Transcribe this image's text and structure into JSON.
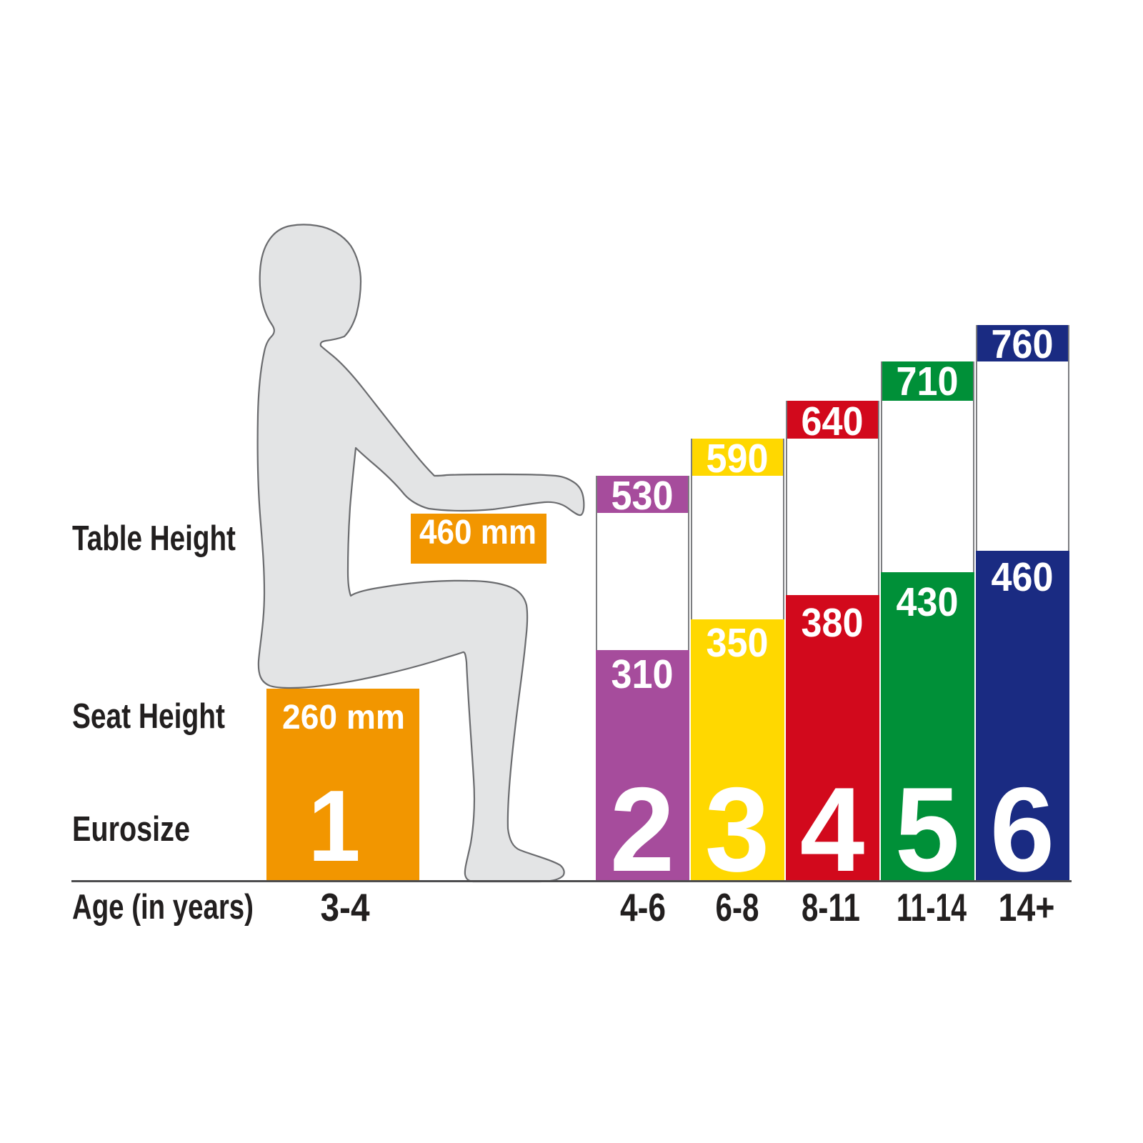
{
  "colors": {
    "orange": "#F29600",
    "purple": "#A64C9C",
    "yellow": "#FFD800",
    "red": "#D2091C",
    "green": "#009038",
    "blue": "#1A2B82",
    "silhouette_fill": "#E3E4E5",
    "silhouette_outline": "#6A6B6E",
    "column_border": "#7C7D80",
    "column_gap_fill": "#FFFFFF",
    "baseline": "#4D4D4F",
    "text_dark": "#221F1F",
    "text_light": "#FFFFFF"
  },
  "labels": {
    "table_height": "Table Height",
    "seat_height": "Seat Height",
    "eurosize": "Eurosize",
    "age": "Age (in years)"
  },
  "size1": {
    "eurosize": "1",
    "age": "3-4",
    "table_height_label": "460 mm",
    "seat_height_label": "260 mm"
  },
  "columns": [
    {
      "eurosize": "2",
      "age": "4-6",
      "table_height": "530",
      "seat_height": "310"
    },
    {
      "eurosize": "3",
      "age": "6-8",
      "table_height": "590",
      "seat_height": "350"
    },
    {
      "eurosize": "4",
      "age": "8-11",
      "table_height": "640",
      "seat_height": "380"
    },
    {
      "eurosize": "5",
      "age": "11-14",
      "table_height": "710",
      "seat_height": "430"
    },
    {
      "eurosize": "6",
      "age": "14+",
      "table_height": "760",
      "seat_height": "460"
    }
  ],
  "chart_data": {
    "type": "bar",
    "categories": [
      "1",
      "2",
      "3",
      "4",
      "5",
      "6"
    ],
    "category_label": "Eurosize",
    "x_axis_label": "Age (in years)",
    "x_ticks": [
      "3-4",
      "4-6",
      "6-8",
      "8-11",
      "11-14",
      "14+"
    ],
    "series": [
      {
        "name": "Table Height",
        "unit": "mm",
        "values": [
          460,
          530,
          590,
          640,
          710,
          760
        ]
      },
      {
        "name": "Seat Height",
        "unit": "mm",
        "values": [
          260,
          310,
          350,
          380,
          430,
          460
        ]
      }
    ],
    "bar_colors": [
      "#F29600",
      "#A64C9C",
      "#FFD800",
      "#D2091C",
      "#009038",
      "#1A2B82"
    ],
    "legend": false,
    "grid": false
  }
}
